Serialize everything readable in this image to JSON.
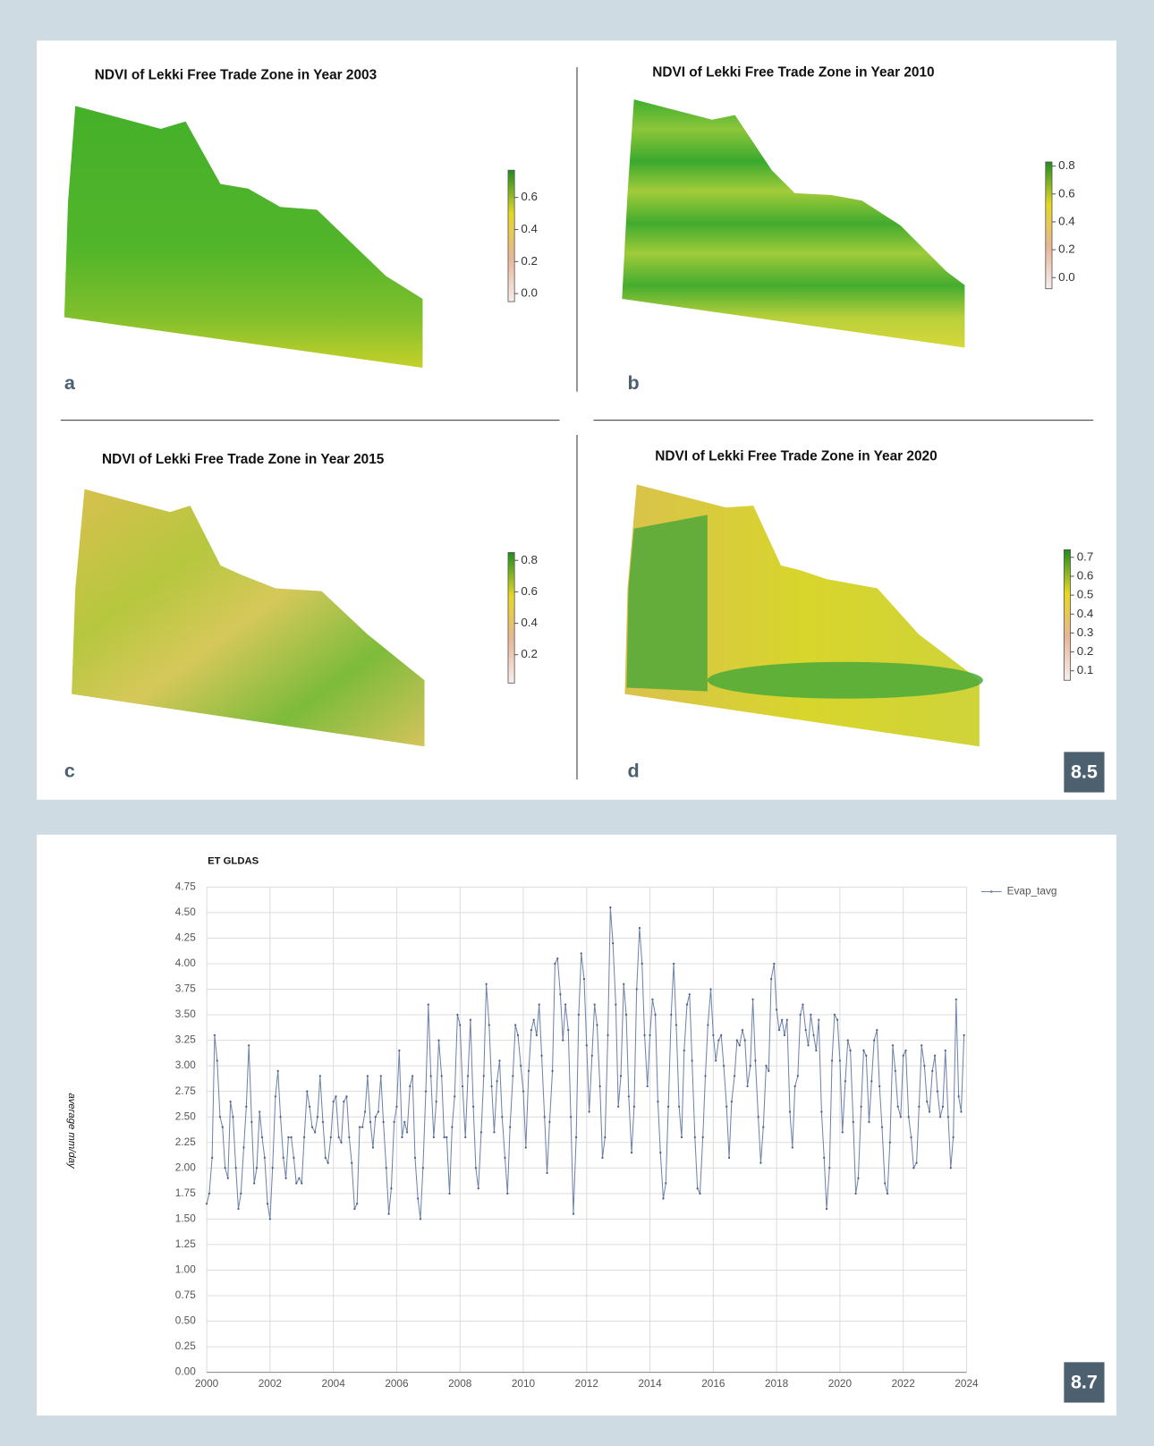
{
  "badges": [
    "8.5",
    "8.7"
  ],
  "chart_data": [
    {
      "type": "raster",
      "title": "NDVI of Lekki Free Trade Zone in Year 2003",
      "panel_label": "a",
      "clim": [
        -0.05,
        0.77
      ],
      "cticks": [
        {
          "value": 0,
          "label": "0.0"
        },
        0.2,
        0.4,
        0.6
      ],
      "colormap": [
        "#f6eeee",
        "#e9b596",
        "#e6d820",
        "#1f8c1f"
      ]
    },
    {
      "type": "raster",
      "title": "NDVI of Lekki Free Trade Zone in Year 2010",
      "panel_label": "b",
      "clim": [
        -0.08,
        0.83
      ],
      "cticks": [
        {
          "value": 0,
          "label": "0.0"
        },
        0.2,
        0.4,
        0.6,
        0.8
      ],
      "colormap": [
        "#f6eeee",
        "#e9b596",
        "#e6d820",
        "#1f8c1f"
      ]
    },
    {
      "type": "raster",
      "title": "NDVI of Lekki Free Trade Zone in Year 2015",
      "panel_label": "c",
      "clim": [
        0.02,
        0.85
      ],
      "cticks": [
        0.2,
        0.4,
        0.6,
        0.8
      ],
      "colormap": [
        "#f6eeee",
        "#e9b596",
        "#e6d820",
        "#1f8c1f"
      ]
    },
    {
      "type": "raster",
      "title": "NDVI of Lekki Free Trade Zone in Year 2020",
      "panel_label": "d",
      "clim": [
        0.05,
        0.74
      ],
      "cticks": [
        0.1,
        0.2,
        0.3,
        0.4,
        0.5,
        0.6,
        0.7
      ],
      "colormap": [
        "#f6eeee",
        "#e9b596",
        "#e6d820",
        "#1f8c1f"
      ]
    },
    {
      "type": "line",
      "title": "ET GLDAS",
      "y_label": "average mm/day",
      "grid": true,
      "legend": "top-right",
      "xlim": [
        2000,
        2024
      ],
      "xticks": [
        2000,
        2002,
        2004,
        2006,
        2008,
        2010,
        2012,
        2014,
        2016,
        2018,
        2020,
        2022,
        2024
      ],
      "ylim": [
        0,
        4.75
      ],
      "yticks": [
        {
          "value": 0,
          "label": "0.00"
        },
        0.25,
        {
          "value": 0.5,
          "label": "0.50"
        },
        0.75,
        {
          "value": 1,
          "label": "1.00"
        },
        1.25,
        {
          "value": 1.5,
          "label": "1.50"
        },
        1.75,
        {
          "value": 2,
          "label": "2.00"
        },
        2.25,
        {
          "value": 2.5,
          "label": "2.50"
        },
        2.75,
        {
          "value": 3,
          "label": "3.00"
        },
        3.25,
        {
          "value": 3.5,
          "label": "3.50"
        },
        3.75,
        {
          "value": 4,
          "label": "4.00"
        },
        4.25,
        {
          "value": 4.5,
          "label": "4.50"
        },
        4.75
      ],
      "x": [
        2000,
        2000.08,
        2000.17,
        2000.25,
        2000.33,
        2000.42,
        2000.5,
        2000.58,
        2000.67,
        2000.75,
        2000.83,
        2000.92,
        2001,
        2001.08,
        2001.17,
        2001.25,
        2001.33,
        2001.42,
        2001.5,
        2001.58,
        2001.67,
        2001.75,
        2001.83,
        2001.92,
        2002,
        2002.08,
        2002.17,
        2002.25,
        2002.33,
        2002.42,
        2002.5,
        2002.58,
        2002.67,
        2002.75,
        2002.83,
        2002.92,
        2003,
        2003.08,
        2003.17,
        2003.25,
        2003.33,
        2003.42,
        2003.5,
        2003.58,
        2003.67,
        2003.75,
        2003.83,
        2003.92,
        2004,
        2004.08,
        2004.17,
        2004.25,
        2004.33,
        2004.42,
        2004.5,
        2004.58,
        2004.67,
        2004.75,
        2004.83,
        2004.92,
        2005,
        2005.08,
        2005.17,
        2005.25,
        2005.33,
        2005.42,
        2005.5,
        2005.58,
        2005.67,
        2005.75,
        2005.83,
        2005.92,
        2006,
        2006.08,
        2006.17,
        2006.25,
        2006.33,
        2006.42,
        2006.5,
        2006.58,
        2006.67,
        2006.75,
        2006.83,
        2006.92,
        2007,
        2007.08,
        2007.17,
        2007.25,
        2007.33,
        2007.42,
        2007.5,
        2007.58,
        2007.67,
        2007.75,
        2007.83,
        2007.92,
        2008,
        2008.08,
        2008.17,
        2008.25,
        2008.33,
        2008.42,
        2008.5,
        2008.58,
        2008.67,
        2008.75,
        2008.83,
        2008.92,
        2009,
        2009.08,
        2009.17,
        2009.25,
        2009.33,
        2009.42,
        2009.5,
        2009.58,
        2009.67,
        2009.75,
        2009.83,
        2009.92,
        2010,
        2010.08,
        2010.17,
        2010.25,
        2010.33,
        2010.42,
        2010.5,
        2010.58,
        2010.67,
        2010.75,
        2010.83,
        2010.92,
        2011,
        2011.08,
        2011.17,
        2011.25,
        2011.33,
        2011.42,
        2011.5,
        2011.58,
        2011.67,
        2011.75,
        2011.83,
        2011.92,
        2012,
        2012.08,
        2012.17,
        2012.25,
        2012.33,
        2012.42,
        2012.5,
        2012.58,
        2012.67,
        2012.75,
        2012.83,
        2012.92,
        2013,
        2013.08,
        2013.17,
        2013.25,
        2013.33,
        2013.42,
        2013.5,
        2013.58,
        2013.67,
        2013.75,
        2013.83,
        2013.92,
        2014,
        2014.08,
        2014.17,
        2014.25,
        2014.33,
        2014.42,
        2014.5,
        2014.58,
        2014.67,
        2014.75,
        2014.83,
        2014.92,
        2015,
        2015.08,
        2015.17,
        2015.25,
        2015.33,
        2015.42,
        2015.5,
        2015.58,
        2015.67,
        2015.75,
        2015.83,
        2015.92,
        2016,
        2016.08,
        2016.17,
        2016.25,
        2016.33,
        2016.42,
        2016.5,
        2016.58,
        2016.67,
        2016.75,
        2016.83,
        2016.92,
        2017,
        2017.08,
        2017.17,
        2017.25,
        2017.33,
        2017.42,
        2017.5,
        2017.58,
        2017.67,
        2017.75,
        2017.83,
        2017.92,
        2018,
        2018.08,
        2018.17,
        2018.25,
        2018.33,
        2018.42,
        2018.5,
        2018.58,
        2018.67,
        2018.75,
        2018.83,
        2018.92,
        2019,
        2019.08,
        2019.17,
        2019.25,
        2019.33,
        2019.42,
        2019.5,
        2019.58,
        2019.67,
        2019.75,
        2019.83,
        2019.92,
        2020,
        2020.08,
        2020.17,
        2020.25,
        2020.33,
        2020.42,
        2020.5,
        2020.58,
        2020.67,
        2020.75,
        2020.83,
        2020.92,
        2021,
        2021.08,
        2021.17,
        2021.25,
        2021.33,
        2021.42,
        2021.5,
        2021.58,
        2021.67,
        2021.75,
        2021.83,
        2021.92,
        2022,
        2022.08,
        2022.17,
        2022.25,
        2022.33,
        2022.42,
        2022.5,
        2022.58,
        2022.67,
        2022.75,
        2022.83,
        2022.92,
        2023,
        2023.08,
        2023.17,
        2023.25,
        2023.33,
        2023.42,
        2023.5,
        2023.58,
        2023.67,
        2023.75,
        2023.83,
        2023.92
      ],
      "series": [
        {
          "name": "Evap_tavg",
          "color": "#6f82aa",
          "values": [
            1.65,
            1.75,
            2.1,
            3.3,
            3.05,
            2.5,
            2.4,
            2.0,
            1.9,
            2.65,
            2.5,
            2.0,
            1.6,
            1.75,
            2.2,
            2.6,
            3.2,
            2.45,
            1.85,
            2.0,
            2.55,
            2.3,
            2.1,
            1.65,
            1.5,
            2.0,
            2.7,
            2.95,
            2.5,
            2.1,
            1.9,
            2.3,
            2.3,
            2.1,
            1.85,
            1.9,
            1.85,
            2.3,
            2.75,
            2.6,
            2.4,
            2.35,
            2.5,
            2.9,
            2.45,
            2.1,
            2.05,
            2.3,
            2.65,
            2.7,
            2.3,
            2.25,
            2.65,
            2.7,
            2.3,
            2.05,
            1.6,
            1.65,
            2.4,
            2.4,
            2.55,
            2.9,
            2.45,
            2.2,
            2.5,
            2.55,
            2.9,
            2.45,
            2.0,
            1.55,
            1.8,
            2.45,
            2.6,
            3.15,
            2.3,
            2.45,
            2.35,
            2.8,
            2.9,
            2.1,
            1.7,
            1.5,
            2.0,
            2.75,
            3.6,
            2.9,
            2.3,
            2.65,
            3.25,
            2.9,
            2.3,
            2.3,
            1.75,
            2.4,
            2.7,
            3.5,
            3.4,
            2.8,
            2.3,
            2.9,
            3.45,
            2.6,
            2.0,
            1.8,
            2.35,
            2.9,
            3.8,
            3.4,
            2.8,
            2.35,
            2.85,
            3.05,
            2.5,
            2.1,
            1.75,
            2.4,
            2.9,
            3.4,
            3.3,
            3.0,
            2.75,
            2.2,
            2.95,
            3.35,
            3.45,
            3.3,
            3.6,
            3.1,
            2.5,
            1.95,
            2.45,
            2.95,
            4.0,
            4.05,
            3.7,
            3.25,
            3.6,
            3.35,
            2.5,
            1.55,
            2.3,
            3.5,
            4.1,
            3.85,
            3.2,
            2.55,
            3.1,
            3.6,
            3.4,
            2.8,
            2.1,
            2.3,
            3.3,
            4.55,
            4.2,
            3.6,
            2.6,
            2.9,
            3.8,
            3.5,
            2.7,
            2.15,
            2.6,
            3.75,
            4.35,
            4.0,
            3.3,
            2.8,
            3.3,
            3.65,
            3.5,
            2.65,
            2.15,
            1.7,
            1.85,
            2.6,
            3.5,
            4.0,
            3.4,
            2.6,
            2.3,
            3.15,
            3.6,
            3.7,
            3.05,
            2.3,
            1.8,
            1.75,
            2.3,
            2.9,
            3.4,
            3.75,
            3.3,
            3.05,
            3.25,
            3.3,
            3.0,
            2.6,
            2.1,
            2.65,
            2.9,
            3.25,
            3.2,
            3.35,
            3.25,
            2.8,
            3.0,
            3.65,
            3.05,
            2.5,
            2.05,
            2.4,
            3.0,
            2.95,
            3.85,
            4.0,
            3.55,
            3.35,
            3.45,
            3.3,
            3.45,
            2.55,
            2.2,
            2.8,
            2.9,
            3.5,
            3.6,
            3.35,
            3.2,
            3.5,
            3.3,
            3.15,
            3.45,
            2.55,
            2.1,
            1.6,
            2.0,
            3.05,
            3.5,
            3.45,
            3.05,
            2.35,
            2.85,
            3.25,
            3.15,
            2.45,
            1.75,
            1.9,
            2.6,
            3.15,
            3.1,
            2.45,
            2.85,
            3.25,
            3.35,
            2.8,
            2.4,
            1.85,
            1.75,
            2.25,
            3.2,
            2.95,
            2.6,
            2.5,
            3.1,
            3.15,
            2.5,
            2.3,
            2.0,
            2.05,
            2.6,
            3.2,
            3.0,
            2.65,
            2.55,
            2.95,
            3.1,
            2.75,
            2.5,
            2.6,
            3.15,
            2.5,
            2.0,
            2.3,
            3.65,
            2.7,
            2.55,
            3.3
          ]
        }
      ]
    }
  ]
}
